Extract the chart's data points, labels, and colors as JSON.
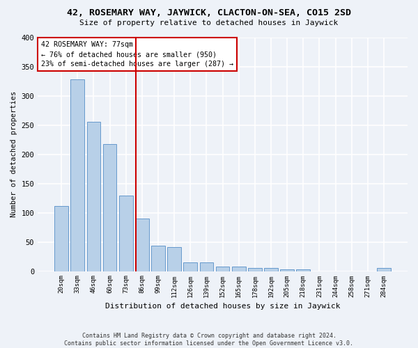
{
  "title": "42, ROSEMARY WAY, JAYWICK, CLACTON-ON-SEA, CO15 2SD",
  "subtitle": "Size of property relative to detached houses in Jaywick",
  "xlabel": "Distribution of detached houses by size in Jaywick",
  "ylabel": "Number of detached properties",
  "categories": [
    "20sqm",
    "33sqm",
    "46sqm",
    "60sqm",
    "73sqm",
    "86sqm",
    "99sqm",
    "112sqm",
    "126sqm",
    "139sqm",
    "152sqm",
    "165sqm",
    "178sqm",
    "192sqm",
    "205sqm",
    "218sqm",
    "231sqm",
    "244sqm",
    "258sqm",
    "271sqm",
    "284sqm"
  ],
  "values": [
    111,
    328,
    256,
    218,
    130,
    90,
    43,
    41,
    15,
    15,
    8,
    8,
    6,
    6,
    3,
    3,
    0,
    0,
    0,
    0,
    5
  ],
  "bar_color": "#b8d0e8",
  "bar_edge_color": "#6699cc",
  "vline_x": 4.62,
  "vline_color": "#cc0000",
  "annotation_text": "42 ROSEMARY WAY: 77sqm\n← 76% of detached houses are smaller (950)\n23% of semi-detached houses are larger (287) →",
  "annotation_box_color": "#ffffff",
  "annotation_box_edge": "#cc0000",
  "ylim": [
    0,
    400
  ],
  "yticks": [
    0,
    50,
    100,
    150,
    200,
    250,
    300,
    350,
    400
  ],
  "footnote": "Contains HM Land Registry data © Crown copyright and database right 2024.\nContains public sector information licensed under the Open Government Licence v3.0.",
  "background_color": "#eef2f8",
  "grid_color": "#ffffff"
}
